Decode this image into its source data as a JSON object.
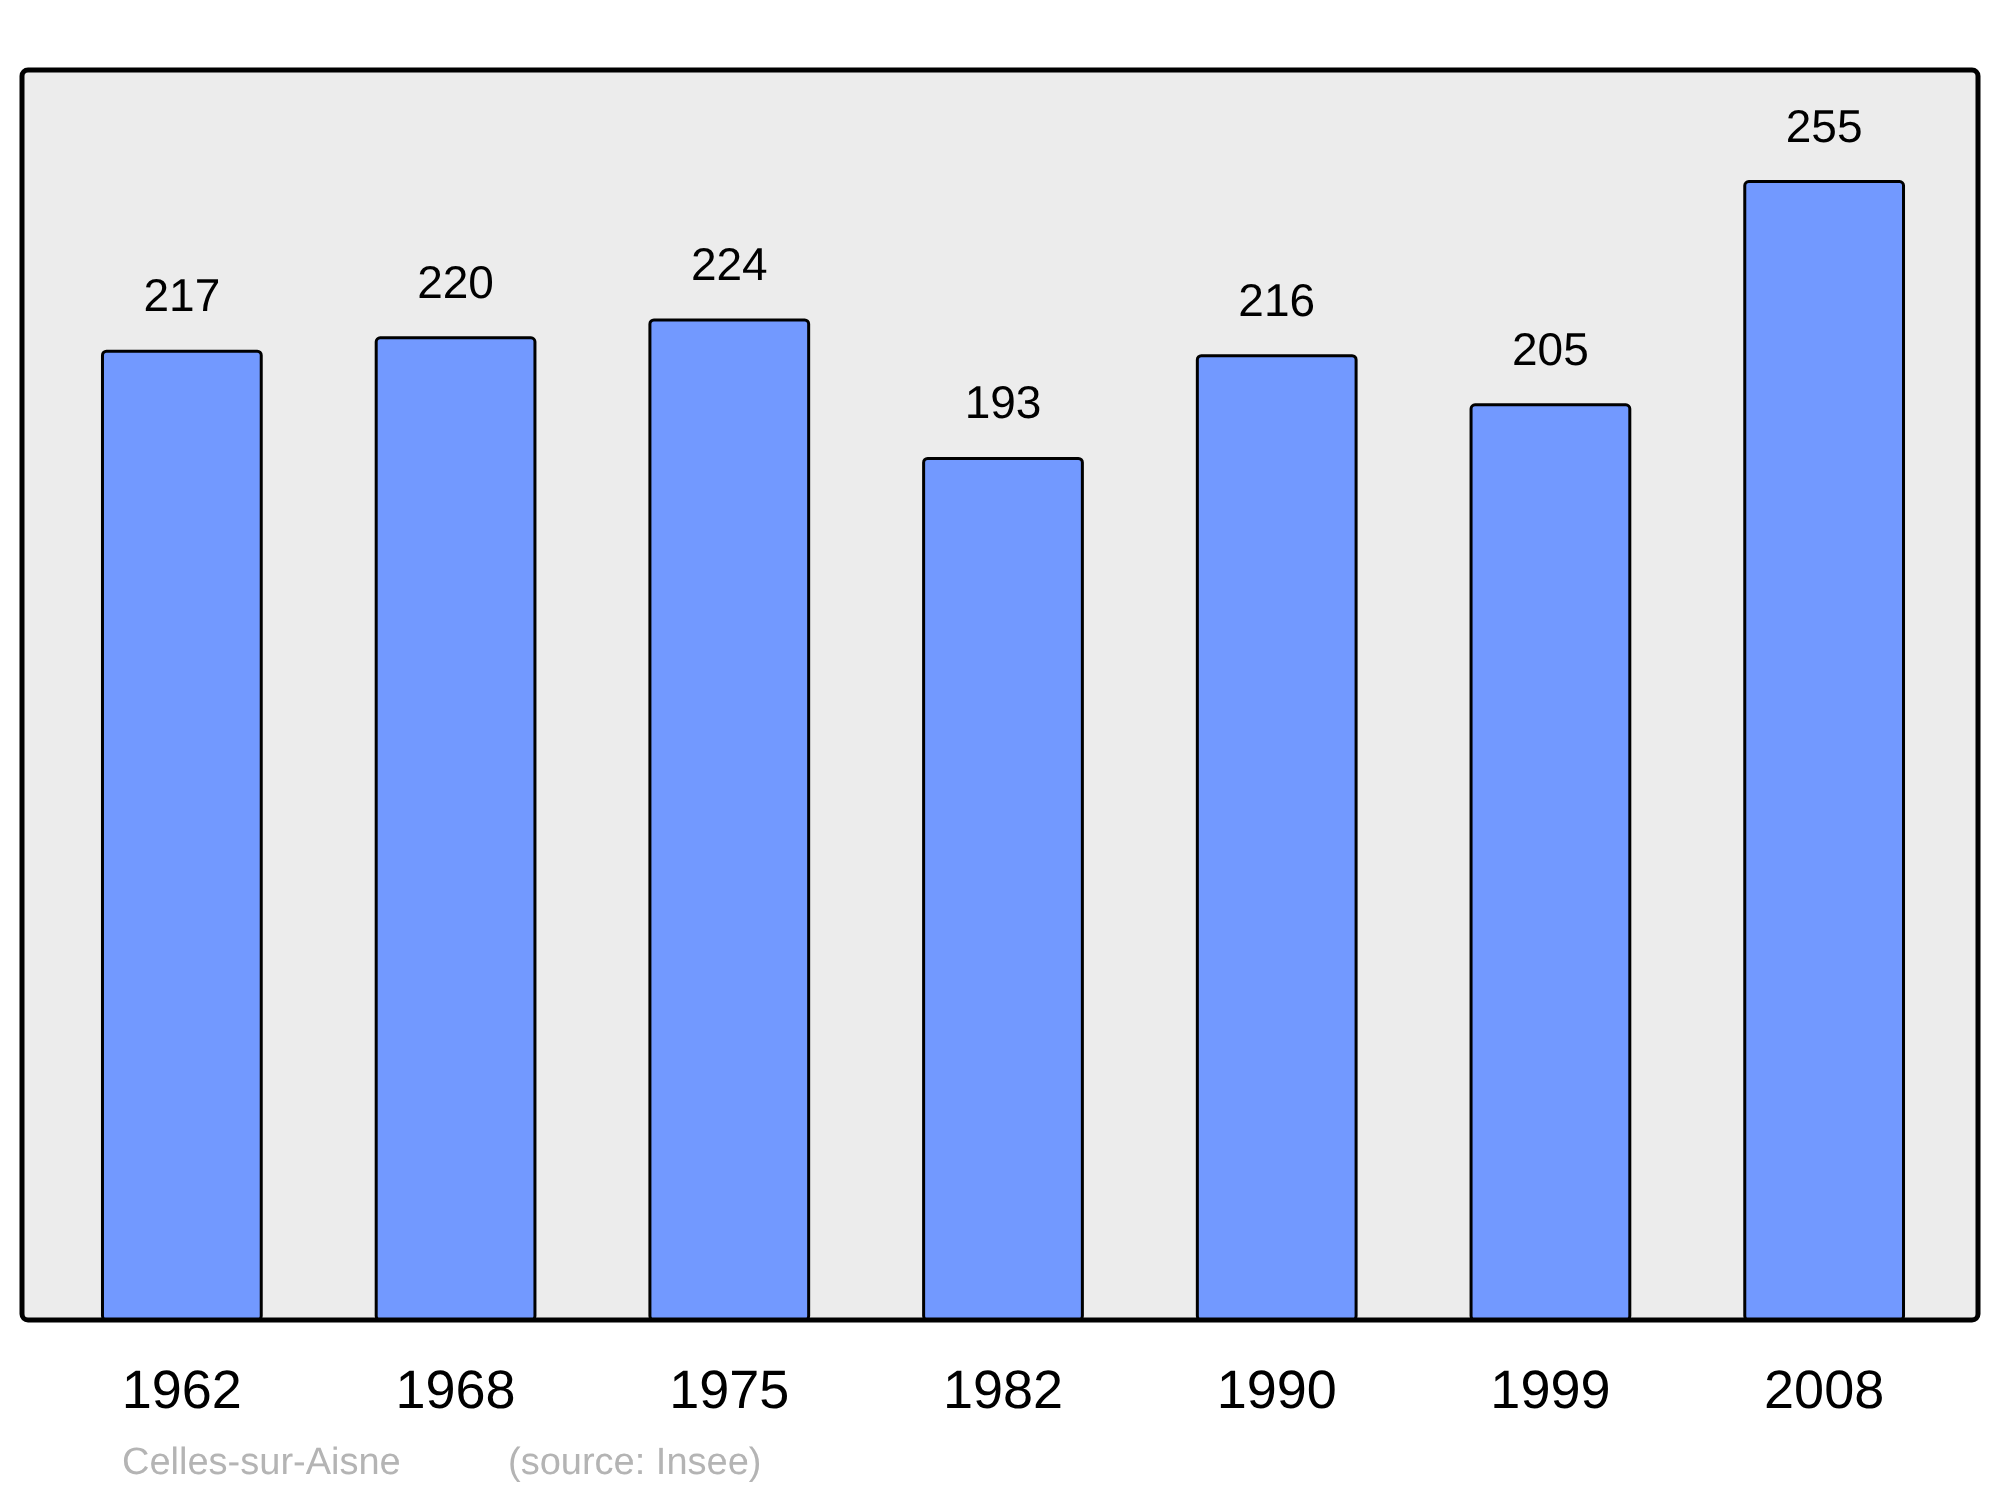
{
  "chart_data": {
    "type": "bar",
    "categories": [
      "1962",
      "1968",
      "1975",
      "1982",
      "1990",
      "1999",
      "2008"
    ],
    "values": [
      217,
      220,
      224,
      193,
      216,
      205,
      255
    ],
    "color": "#7299ff",
    "data_labels": true,
    "ylim": [
      0,
      280
    ],
    "annotations": [
      "Celles-sur-Aisne",
      "(source: Insee)"
    ]
  }
}
